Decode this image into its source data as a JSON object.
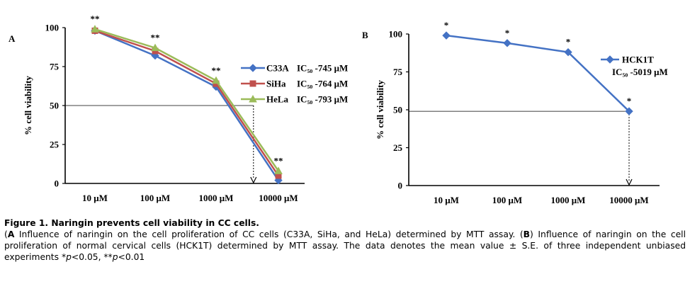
{
  "chart_data": [
    {
      "panel_label": "A",
      "type": "line",
      "ylabel": "% cell viability",
      "categories": [
        "10 μM",
        "100 μM",
        "1000 μM",
        "10000 μM"
      ],
      "ylim": [
        0,
        100
      ],
      "yticks": [
        "0",
        "25",
        "50",
        "75",
        "100"
      ],
      "reference_y": 50,
      "reference_x_category_index": 2.6,
      "significance": [
        "**",
        "**",
        "**",
        "**"
      ],
      "legend_position": "right",
      "series": [
        {
          "name": "C33A",
          "ic50": "IC₅₀ -745 μM",
          "color": "#4472c4",
          "marker": "diamond",
          "values": [
            98,
            82,
            62,
            2
          ]
        },
        {
          "name": "SiHa",
          "ic50": "IC₅₀ -764 μM",
          "color": "#c0504d",
          "marker": "square",
          "values": [
            98,
            85,
            64,
            5
          ]
        },
        {
          "name": "HeLa",
          "ic50": "IC₅₀ -793 μM",
          "color": "#9bbb59",
          "marker": "triangle",
          "values": [
            99,
            87,
            66,
            8
          ]
        }
      ]
    },
    {
      "panel_label": "B",
      "type": "line",
      "ylabel": "% cell viability",
      "categories": [
        "10 μM",
        "100 μM",
        "1000 μM",
        "10000 μM"
      ],
      "ylim": [
        0,
        100
      ],
      "yticks": [
        "0",
        "25",
        "50",
        "75",
        "100"
      ],
      "reference_y": 49,
      "reference_x_category_index": 3,
      "significance": [
        "*",
        "*",
        "*",
        "*"
      ],
      "legend_position": "right",
      "series": [
        {
          "name": "HCK1T",
          "ic50": "IC₅₀ -5019 μM",
          "color": "#4472c4",
          "marker": "diamond",
          "values": [
            99,
            94,
            88,
            49
          ]
        }
      ]
    }
  ],
  "caption": {
    "title": "Figure 1. Naringin prevents cell viability in CC cells.",
    "a_label": "A",
    "a_text": " Influence of naringin on the cell proliferation of CC cells (C33A, SiHa, and HeLa) determined by MTT assay. (",
    "b_label": "B",
    "b_text": ") Influence of naringin on the cell proliferation of normal cervical cells (HCK1T) determined by MTT assay. The data denotes the mean value ± S.E. of three independent unbiased experiments *",
    "p1": "p",
    "p1_rest": "<0.05, **",
    "p2": "p",
    "p2_rest": "<0.01"
  }
}
